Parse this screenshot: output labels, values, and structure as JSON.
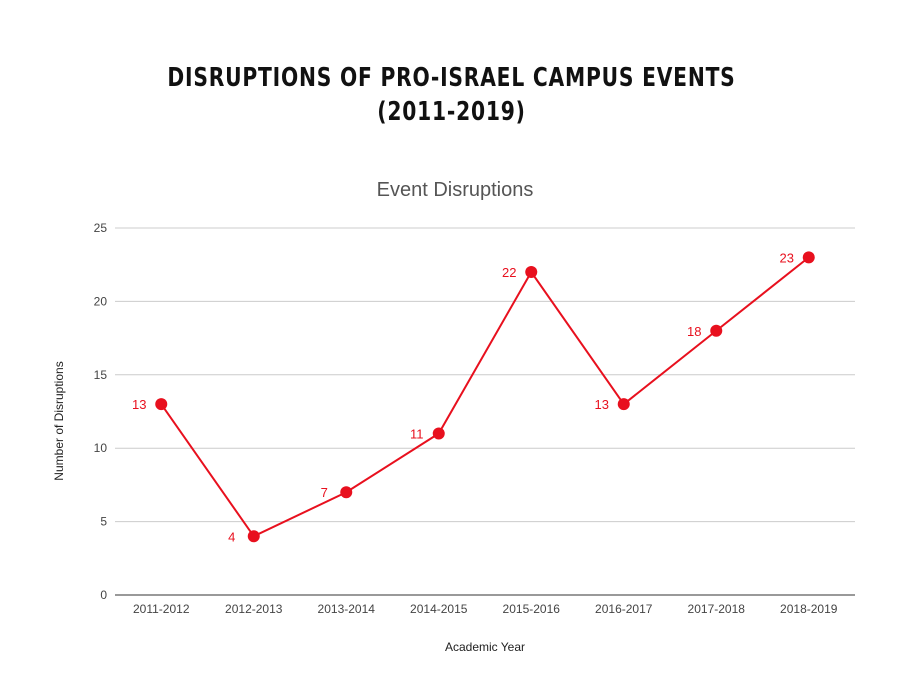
{
  "page": {
    "title_line1": "DISRUPTIONS OF PRO-ISRAEL CAMPUS EVENTS",
    "title_line2": "(2011-2019)"
  },
  "chart_data": {
    "type": "line",
    "title": "Event Disruptions",
    "xlabel": "Academic Year",
    "ylabel": "Number of Disruptions",
    "categories": [
      "2011-2012",
      "2012-2013",
      "2013-2014",
      "2014-2015",
      "2015-2016",
      "2016-2017",
      "2017-2018",
      "2018-2019"
    ],
    "series": [
      {
        "values": [
          13,
          4,
          7,
          11,
          22,
          13,
          18,
          23
        ],
        "color": "#e8101e"
      }
    ],
    "ylim": [
      0,
      25
    ],
    "yticks": [
      0,
      5,
      10,
      15,
      20,
      25
    ],
    "grid": true,
    "legend": "none",
    "data_labels": true
  }
}
